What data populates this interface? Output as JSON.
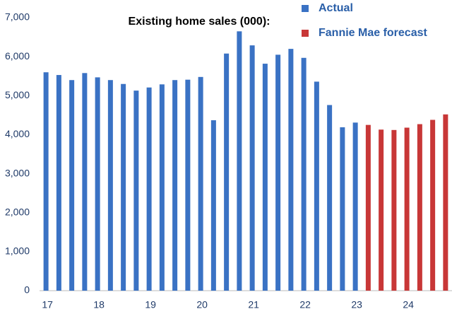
{
  "chart_data": {
    "type": "bar",
    "title": "Existing home sales (000):",
    "categories": [
      "17",
      null,
      null,
      null,
      "18",
      null,
      null,
      null,
      "19",
      null,
      null,
      null,
      "20",
      null,
      null,
      null,
      "21",
      null,
      null,
      null,
      "22",
      null,
      null,
      null,
      "23",
      null,
      null,
      null,
      "24",
      null,
      null,
      null
    ],
    "series": [
      {
        "name": "Actual",
        "color": "#3a72c4",
        "values": [
          5600,
          5530,
          5400,
          5580,
          5470,
          5400,
          5300,
          5130,
          5210,
          5290,
          5400,
          5410,
          5480,
          4370,
          6080,
          6650,
          6290,
          5820,
          6050,
          6200,
          5970,
          5360,
          4760,
          4190,
          4310,
          null,
          null,
          null,
          null,
          null,
          null,
          null
        ]
      },
      {
        "name": "Fannie Mae forecast",
        "color": "#c83737",
        "values": [
          null,
          null,
          null,
          null,
          null,
          null,
          null,
          null,
          null,
          null,
          null,
          null,
          null,
          null,
          null,
          null,
          null,
          null,
          null,
          null,
          null,
          null,
          null,
          null,
          null,
          4250,
          4130,
          4120,
          4180,
          4270,
          4380,
          4520
        ]
      }
    ],
    "ylim": [
      0,
      7000
    ],
    "yticks": [
      0,
      {
        "value": 1000,
        "label": "1,000"
      },
      {
        "value": 2000,
        "label": "2,000"
      },
      {
        "value": 3000,
        "label": "3,000"
      },
      {
        "value": 4000,
        "label": "4,000"
      },
      {
        "value": 5000,
        "label": "5,000"
      },
      {
        "value": 6000,
        "label": "6,000"
      },
      {
        "value": 7000,
        "label": "7,000"
      }
    ],
    "grid": false
  }
}
